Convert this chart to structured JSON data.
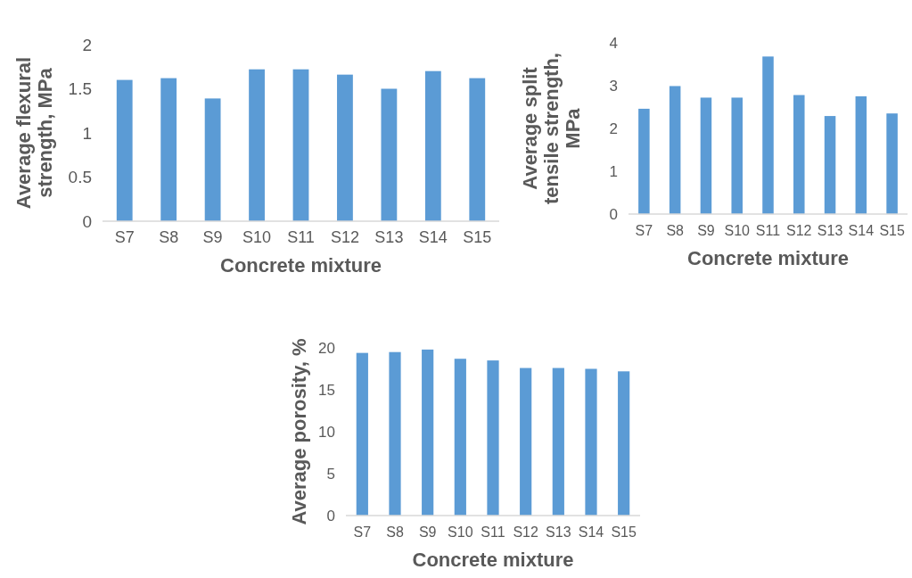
{
  "chart_data": [
    {
      "type": "bar",
      "xlabel": "Concrete mixture",
      "ylabel": "Average flexural strength, MPa",
      "categories": [
        "S7",
        "S8",
        "S9",
        "S10",
        "S11",
        "S12",
        "S13",
        "S14",
        "S15"
      ],
      "values": [
        1.6,
        1.62,
        1.39,
        1.72,
        1.72,
        1.66,
        1.5,
        1.7,
        1.62
      ],
      "color": "#5b9bd5",
      "ylim": [
        0,
        2
      ],
      "yticks": [
        0,
        0.5,
        1,
        1.5,
        2
      ],
      "grid": false
    },
    {
      "type": "bar",
      "xlabel": "Concrete mixture",
      "ylabel": "Average split tensile strength, MPa",
      "categories": [
        "S7",
        "S8",
        "S9",
        "S10",
        "S11",
        "S12",
        "S13",
        "S14",
        "S15"
      ],
      "values": [
        2.46,
        2.99,
        2.72,
        2.72,
        3.68,
        2.78,
        2.29,
        2.75,
        2.35
      ],
      "color": "#5b9bd5",
      "ylim": [
        0,
        4
      ],
      "yticks": [
        0,
        1,
        2,
        3,
        4
      ],
      "grid": false
    },
    {
      "type": "bar",
      "xlabel": "Concrete mixture",
      "ylabel": "Average porosity, %",
      "categories": [
        "S7",
        "S8",
        "S9",
        "S10",
        "S11",
        "S12",
        "S13",
        "S14",
        "S15"
      ],
      "values": [
        19.4,
        19.5,
        19.8,
        18.7,
        18.5,
        17.6,
        17.6,
        17.5,
        17.2
      ],
      "color": "#5b9bd5",
      "ylim": [
        0,
        20
      ],
      "yticks": [
        0,
        5,
        10,
        15,
        20
      ],
      "grid": false
    }
  ]
}
